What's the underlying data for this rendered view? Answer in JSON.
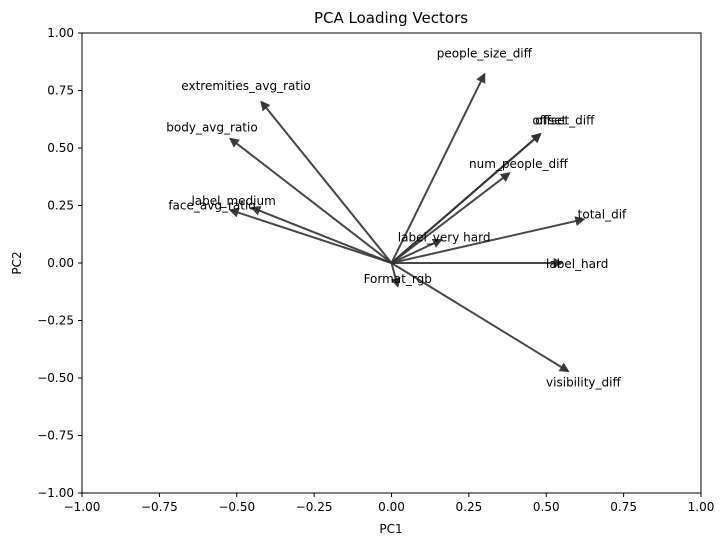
{
  "chart_data": {
    "type": "vector",
    "title": "PCA Loading Vectors",
    "xlabel": "PC1",
    "ylabel": "PC2",
    "xlim": [
      -1.0,
      1.0
    ],
    "ylim": [
      -1.0,
      1.0
    ],
    "grid": false,
    "x_ticks": [
      "−1.00",
      "−0.75",
      "−0.50",
      "−0.25",
      "0.00",
      "0.25",
      "0.50",
      "0.75",
      "1.00"
    ],
    "y_ticks": [
      "−1.00",
      "−0.75",
      "−0.50",
      "−0.25",
      "0.00",
      "0.25",
      "0.50",
      "0.75",
      "1.00"
    ],
    "vectors": [
      {
        "name": "people_size_diff",
        "x": 0.3,
        "y": 0.82,
        "label_x": 0.3,
        "label_y": 0.91
      },
      {
        "name": "extremities_avg_ratio",
        "x": -0.42,
        "y": 0.7,
        "label_x": -0.47,
        "label_y": 0.77
      },
      {
        "name": "body_avg_ratio",
        "x": -0.52,
        "y": 0.54,
        "label_x": -0.58,
        "label_y": 0.59
      },
      {
        "name": "offset",
        "x": 0.48,
        "y": 0.56,
        "label_x": 0.51,
        "label_y": 0.62
      },
      {
        "name": "offset_diff",
        "x": 0.48,
        "y": 0.56,
        "label_x": 0.56,
        "label_y": 0.62
      },
      {
        "name": "num_people_diff",
        "x": 0.38,
        "y": 0.39,
        "label_x": 0.41,
        "label_y": 0.43
      },
      {
        "name": "label_medium",
        "x": -0.45,
        "y": 0.24,
        "label_x": -0.51,
        "label_y": 0.27
      },
      {
        "name": "face_avg_ratio",
        "x": -0.52,
        "y": 0.23,
        "label_x": -0.58,
        "label_y": 0.25
      },
      {
        "name": "total_dif",
        "x": 0.62,
        "y": 0.19,
        "label_x": 0.68,
        "label_y": 0.21
      },
      {
        "name": "label_very hard",
        "x": 0.16,
        "y": 0.1,
        "label_x": 0.17,
        "label_y": 0.11
      },
      {
        "name": "label_hard",
        "x": 0.55,
        "y": 0.0,
        "label_x": 0.6,
        "label_y": -0.005
      },
      {
        "name": "Format_rgb",
        "x": 0.02,
        "y": -0.1,
        "label_x": 0.02,
        "label_y": -0.07
      },
      {
        "name": "visibility_diff",
        "x": 0.57,
        "y": -0.47,
        "label_x": 0.62,
        "label_y": -0.52
      }
    ]
  }
}
